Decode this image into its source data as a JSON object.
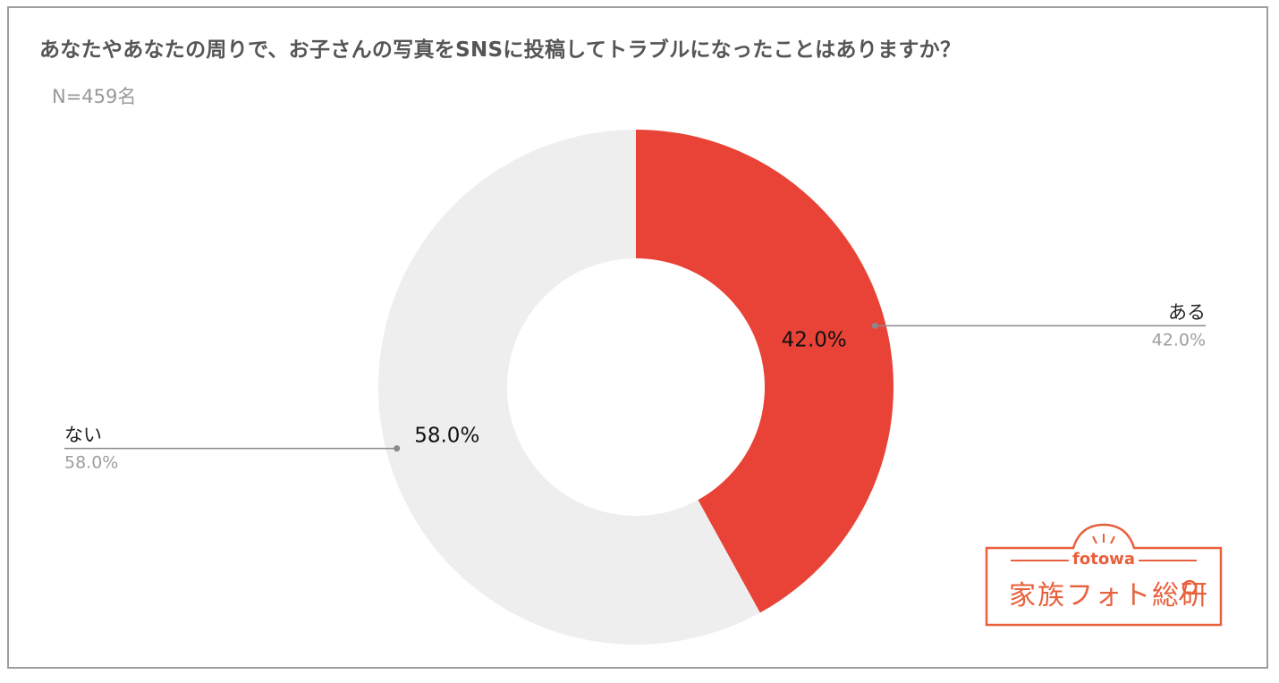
{
  "header": {
    "title": "あなたやあなたの周りで、お子さんの写真をSNSに投稿してトラブルになったことはありますか？",
    "sample_size": "N=459名"
  },
  "chart_data": {
    "type": "pie",
    "donut": true,
    "title": "あなたやあなたの周りで、お子さんの写真をSNSに投稿してトラブルになったことはありますか？",
    "subtitle": "N=459名",
    "slices": [
      {
        "label": "ある",
        "value": 42.0,
        "display": "42.0%",
        "color": "#e84336"
      },
      {
        "label": "ない",
        "value": 58.0,
        "display": "58.0%",
        "color": "#eeeeee"
      }
    ],
    "legend": "callouts"
  },
  "logo": {
    "brand": "fotowa",
    "name": "家族フォト総研",
    "color": "#e8603c"
  }
}
